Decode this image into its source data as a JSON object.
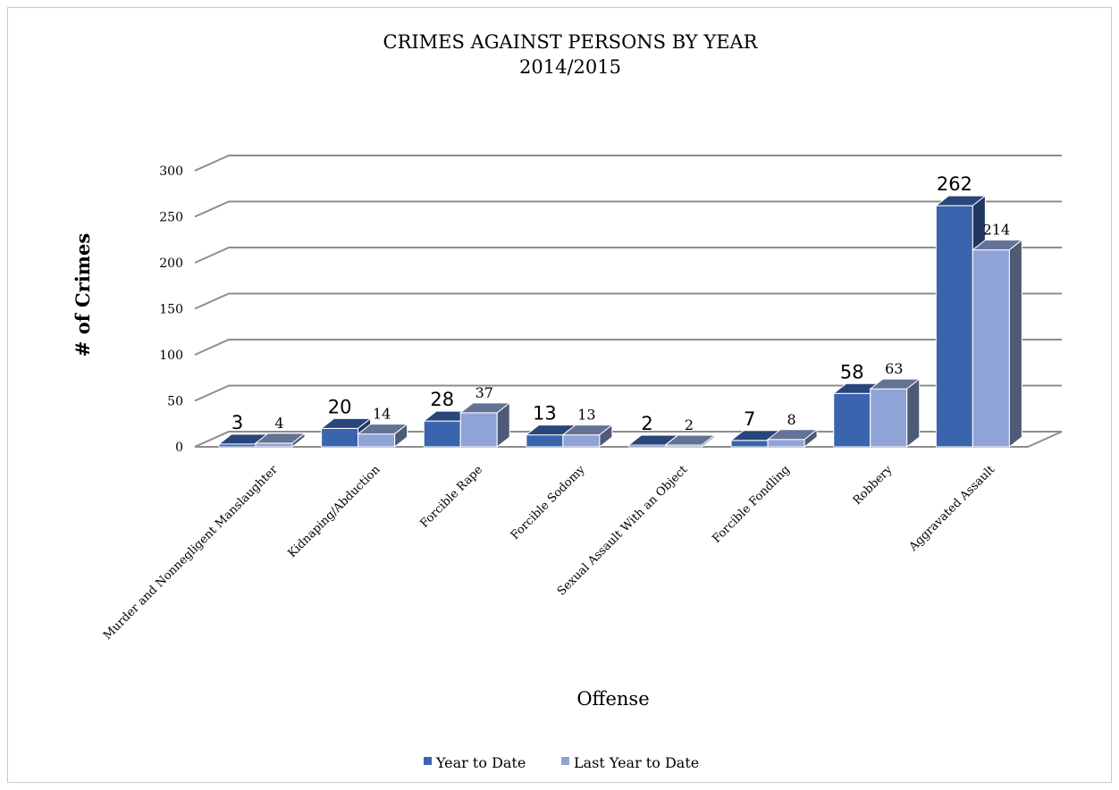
{
  "chart_data": {
    "type": "bar",
    "title_line1": "CRIMES AGAINST PERSONS BY YEAR",
    "title_line2": "2014/2015",
    "xlabel": "Offense",
    "ylabel": "# of Crimes",
    "ylim": [
      0,
      300
    ],
    "yticks": [
      0,
      50,
      100,
      150,
      200,
      250,
      300
    ],
    "grid": true,
    "legend_position": "bottom",
    "categories": [
      "Murder and Nonnegligent Manslaughter",
      "Kidnaping/Abduction",
      "Forcible Rape",
      "Forcible Sodomy",
      "Sexual Assault With an Object",
      "Forcible Fondling",
      "Robbery",
      "Aggravated Assault"
    ],
    "series": [
      {
        "name": "Year to Date",
        "values": [
          3,
          20,
          28,
          13,
          2,
          7,
          58,
          262
        ],
        "color": "#3a64ae"
      },
      {
        "name": "Last Year to Date",
        "values": [
          4,
          14,
          37,
          13,
          2,
          8,
          63,
          214
        ],
        "color": "#8fa3d6"
      }
    ]
  }
}
